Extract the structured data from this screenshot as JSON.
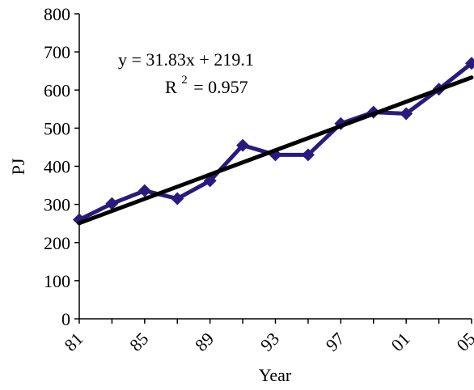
{
  "chart_data": {
    "type": "line",
    "xlabel": "Year",
    "ylabel": "PJ",
    "ylim": [
      0,
      800
    ],
    "yticks": [
      0,
      100,
      200,
      300,
      400,
      500,
      600,
      700,
      800
    ],
    "xticks": [
      "81",
      "85",
      "89",
      "93",
      "97",
      "01",
      "05"
    ],
    "xlim": [
      1982,
      2006
    ],
    "series": [
      {
        "x": [
          1982,
          1984,
          1986,
          1988,
          1990,
          1992,
          1994,
          1996,
          1998,
          2000,
          2002,
          2004,
          2006
        ],
        "values": [
          260,
          302,
          336,
          315,
          362,
          455,
          430,
          430,
          512,
          542,
          538,
          602,
          670
        ],
        "color": "#2b1a7e",
        "marker": "diamond"
      }
    ],
    "trendline": {
      "slope": 31.83,
      "intercept": 219.1,
      "color": "#000000"
    },
    "annotations": {
      "equation": "y = 31.83x + 219.1",
      "r2_prefix": "R",
      "r2_exponent": "2",
      "r2_value": "= 0.957"
    },
    "grid": false,
    "legend": "none"
  }
}
